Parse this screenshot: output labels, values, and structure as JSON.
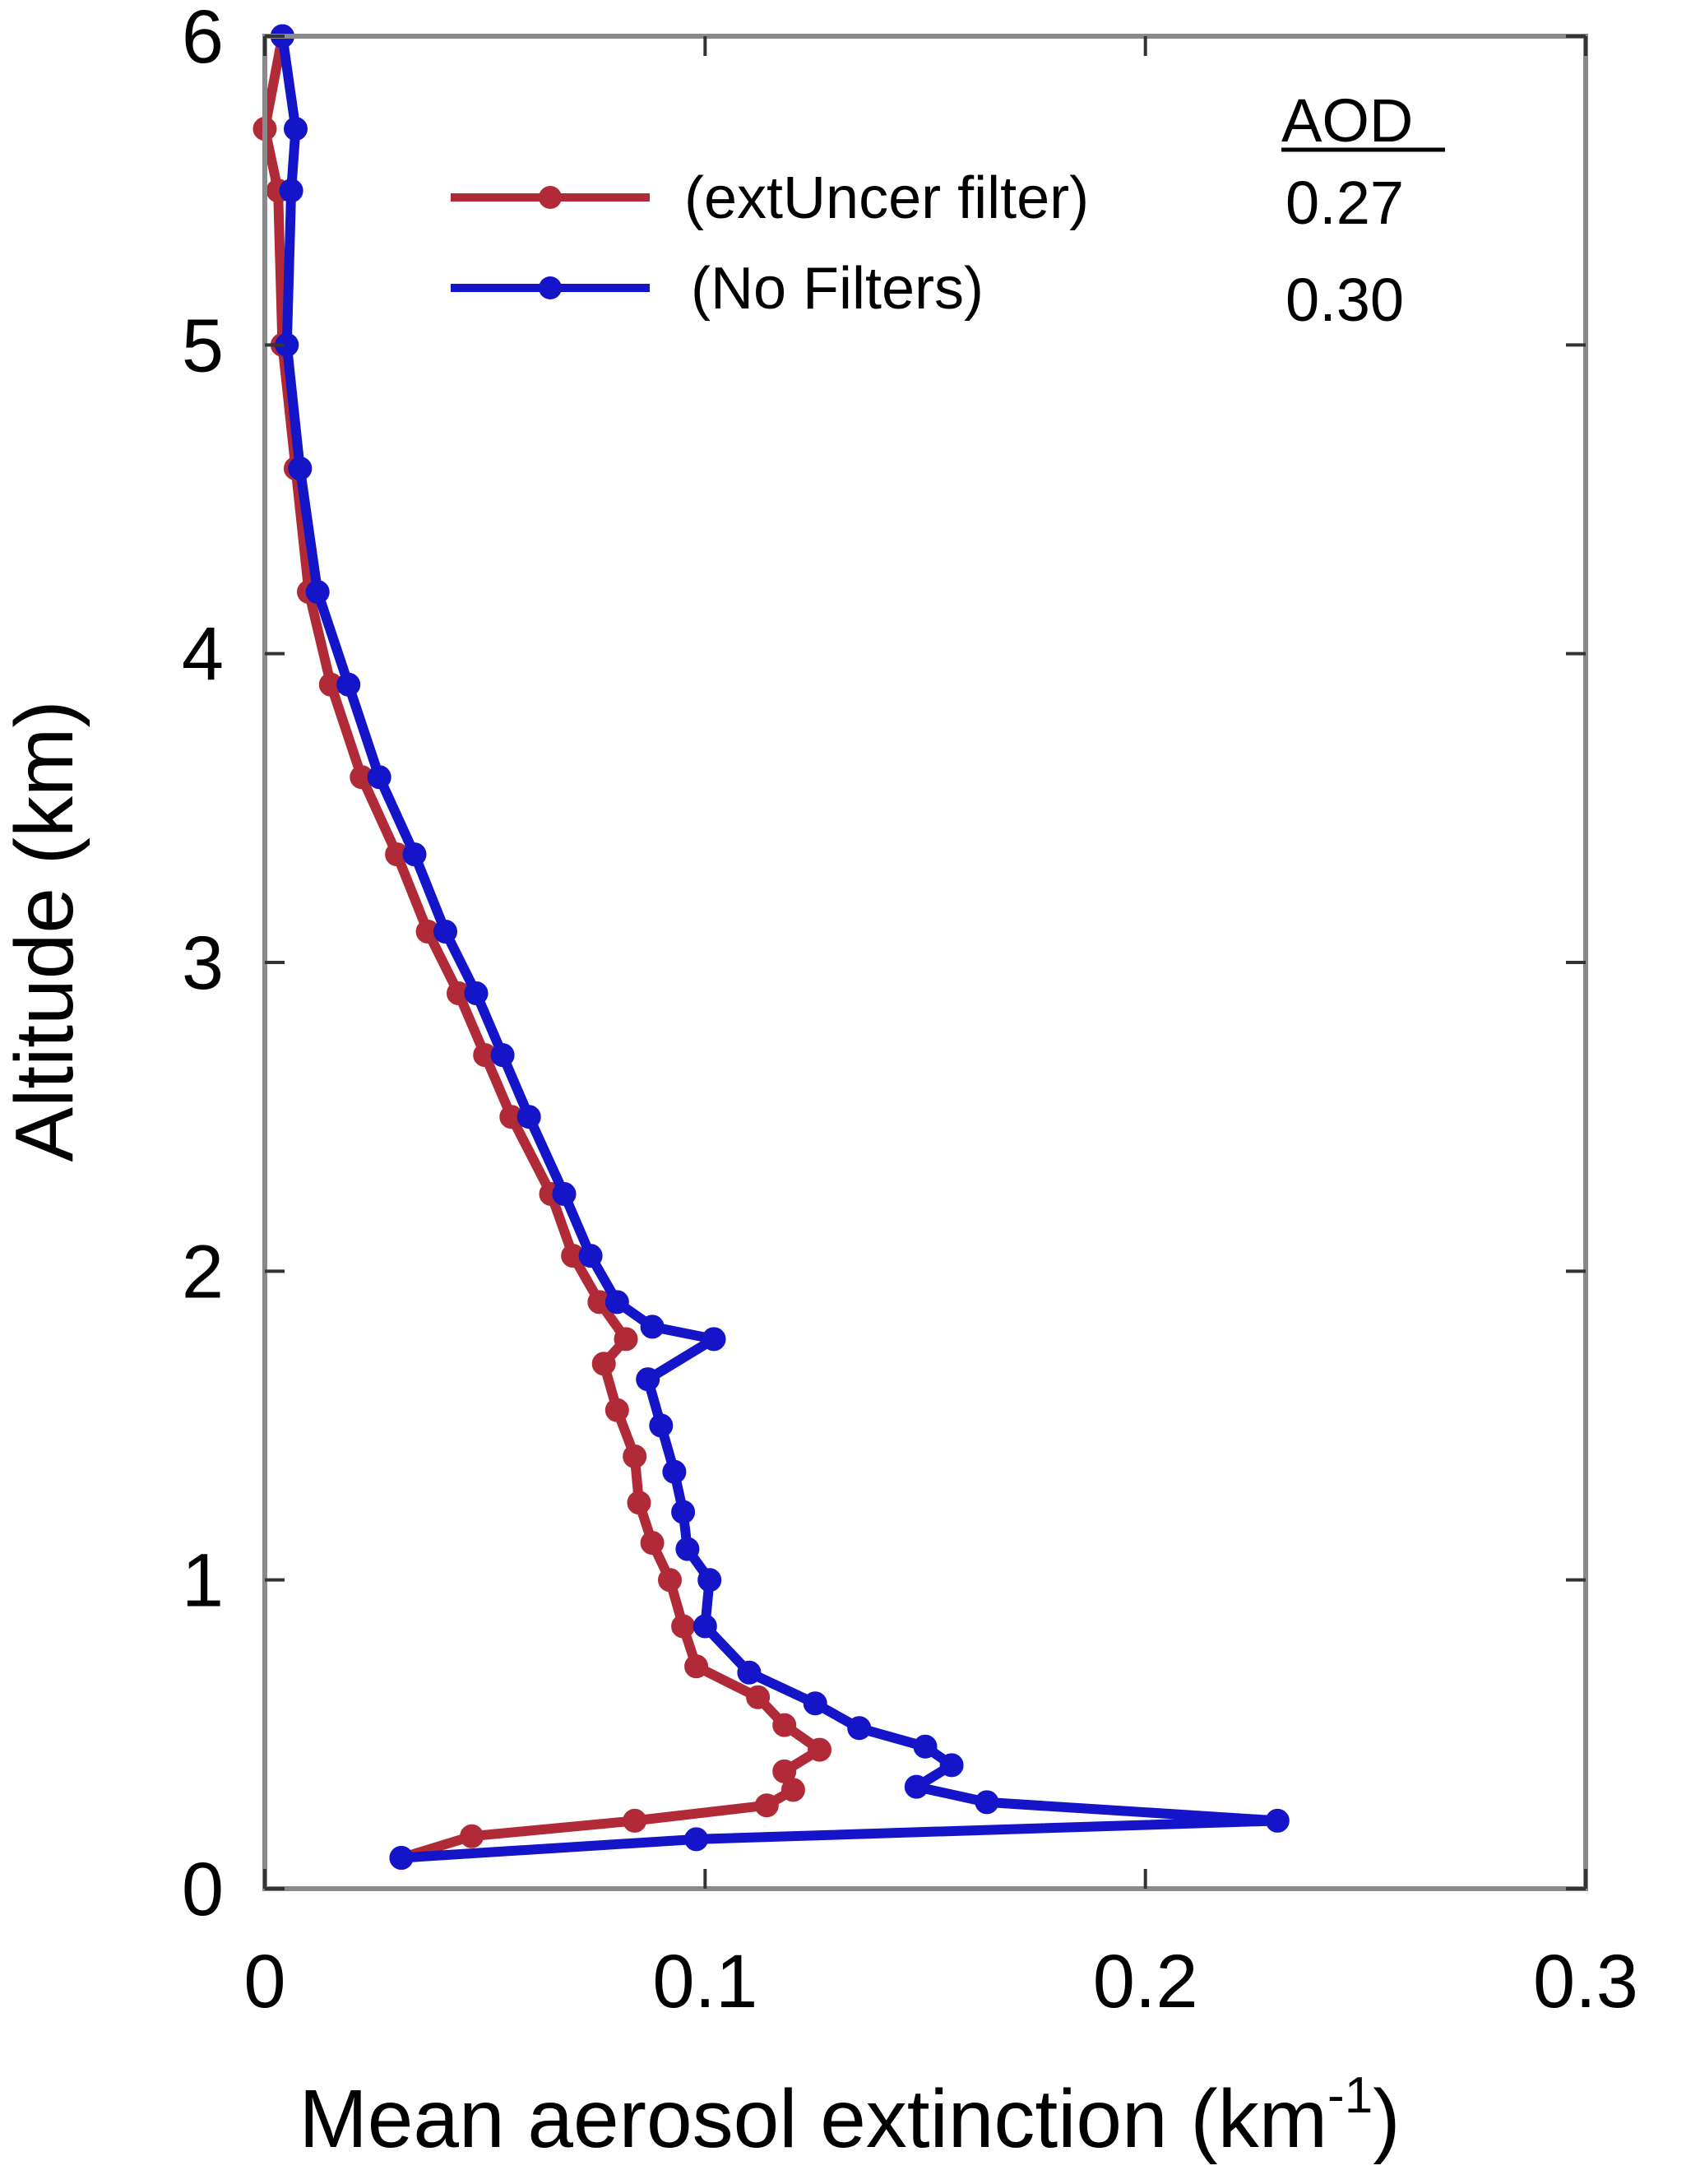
{
  "colors": {
    "red_series": "#b02a37",
    "blue_series": "#1414c8",
    "frame": "#8a8a8a"
  },
  "aod": {
    "heading": "AOD",
    "values": [
      "0.27",
      "0.30"
    ]
  },
  "chart_data": {
    "type": "line",
    "xlabel": "Mean aerosol extinction (km",
    "xlabel_superscript": "-1",
    "xlabel_close": ")",
    "ylabel": "Altitude (km)",
    "xlim": [
      0,
      0.3
    ],
    "ylim": [
      0,
      6
    ],
    "x_ticks": [
      0,
      0.1,
      0.2,
      0.3
    ],
    "x_tick_labels": [
      "0",
      "0.1",
      "0.2",
      "0.3"
    ],
    "y_ticks": [
      0,
      1,
      2,
      3,
      4,
      5,
      6
    ],
    "y_tick_labels": [
      "0",
      "1",
      "2",
      "3",
      "4",
      "5",
      "6"
    ],
    "grid": false,
    "legend_position": "top-right",
    "series": [
      {
        "name": "(extUncer filter)",
        "color": "#b02a37",
        "points": [
          [
            0.031,
            0.1
          ],
          [
            0.047,
            0.17
          ],
          [
            0.084,
            0.22
          ],
          [
            0.114,
            0.27
          ],
          [
            0.12,
            0.32
          ],
          [
            0.118,
            0.38
          ],
          [
            0.126,
            0.45
          ],
          [
            0.118,
            0.53
          ],
          [
            0.112,
            0.62
          ],
          [
            0.098,
            0.72
          ],
          [
            0.095,
            0.85
          ],
          [
            0.092,
            1.0
          ],
          [
            0.088,
            1.12
          ],
          [
            0.085,
            1.25
          ],
          [
            0.084,
            1.4
          ],
          [
            0.08,
            1.55
          ],
          [
            0.077,
            1.7
          ],
          [
            0.082,
            1.78
          ],
          [
            0.076,
            1.9
          ],
          [
            0.07,
            2.05
          ],
          [
            0.065,
            2.25
          ],
          [
            0.056,
            2.5
          ],
          [
            0.05,
            2.7
          ],
          [
            0.044,
            2.9
          ],
          [
            0.037,
            3.1
          ],
          [
            0.03,
            3.35
          ],
          [
            0.022,
            3.6
          ],
          [
            0.015,
            3.9
          ],
          [
            0.01,
            4.2
          ],
          [
            0.007,
            4.6
          ],
          [
            0.004,
            5.0
          ],
          [
            0.003,
            5.5
          ],
          [
            0.0,
            5.7
          ],
          [
            0.004,
            6.0
          ]
        ]
      },
      {
        "name": "(No Filters)",
        "color": "#1414c8",
        "points": [
          [
            0.031,
            0.1
          ],
          [
            0.098,
            0.16
          ],
          [
            0.23,
            0.22
          ],
          [
            0.164,
            0.28
          ],
          [
            0.148,
            0.33
          ],
          [
            0.156,
            0.4
          ],
          [
            0.15,
            0.46
          ],
          [
            0.135,
            0.52
          ],
          [
            0.125,
            0.6
          ],
          [
            0.11,
            0.7
          ],
          [
            0.1,
            0.85
          ],
          [
            0.101,
            1.0
          ],
          [
            0.096,
            1.1
          ],
          [
            0.095,
            1.22
          ],
          [
            0.093,
            1.35
          ],
          [
            0.09,
            1.5
          ],
          [
            0.087,
            1.65
          ],
          [
            0.102,
            1.78
          ],
          [
            0.088,
            1.82
          ],
          [
            0.08,
            1.9
          ],
          [
            0.074,
            2.05
          ],
          [
            0.068,
            2.25
          ],
          [
            0.06,
            2.5
          ],
          [
            0.054,
            2.7
          ],
          [
            0.048,
            2.9
          ],
          [
            0.041,
            3.1
          ],
          [
            0.034,
            3.35
          ],
          [
            0.026,
            3.6
          ],
          [
            0.019,
            3.9
          ],
          [
            0.012,
            4.2
          ],
          [
            0.008,
            4.6
          ],
          [
            0.005,
            5.0
          ],
          [
            0.006,
            5.5
          ],
          [
            0.007,
            5.7
          ],
          [
            0.004,
            6.0
          ]
        ]
      }
    ]
  }
}
